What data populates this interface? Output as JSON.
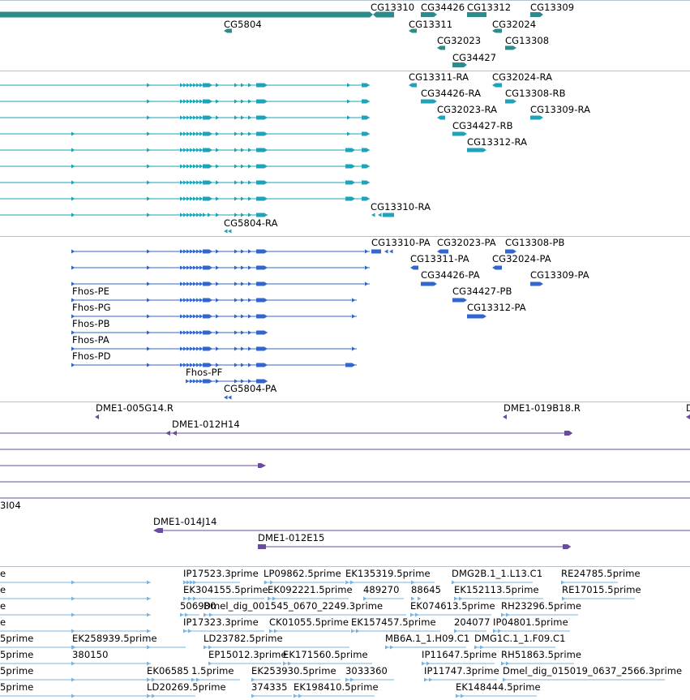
{
  "colors": {
    "gene": "#2e8b8b",
    "transcript": "#1ea3b8",
    "protein": "#3366cc",
    "clone": "#6a4ba0",
    "est": "#7ab3de"
  },
  "tracks": {
    "genes": {
      "labels": [
        "CG13310",
        "CG34426",
        "CG13312",
        "CG13309",
        "CG5804",
        "CG13311",
        "CG32024",
        "CG32023",
        "CG13308",
        "CG34427"
      ]
    },
    "transcripts": {
      "labels": [
        "CG13311-RA",
        "CG32024-RA",
        "CG34426-RA",
        "CG13308-RB",
        "CG32023-RA",
        "CG13309-RA",
        "CG34427-RB",
        "CG13312-RA",
        "CG13310-RA",
        "CG5804-RA"
      ]
    },
    "proteins": {
      "labels": [
        "CG13310-PA",
        "CG32023-PA",
        "CG13308-PB",
        "CG13311-PA",
        "CG32024-PA",
        "CG34426-PA",
        "CG13309-PA",
        "Fhos-PE",
        "CG34427-PB",
        "Fhos-PG",
        "CG13312-PA",
        "Fhos-PB",
        "Fhos-PA",
        "Fhos-PD",
        "Fhos-PF",
        "CG5804-PA"
      ]
    },
    "clones": {
      "labels": [
        "DME1-005G14.R",
        "DME1-019B18.R",
        "D",
        "DME1-012H14",
        "3I04",
        "DME1-014J14",
        "DME1-012E15"
      ]
    },
    "ests": {
      "labels": [
        "e",
        "IP17523.3prime",
        "LP09862.5prime",
        "EK135319.5prime",
        "DMG2B.1_1.L13.C1",
        "RE24785.5prime",
        "e",
        "EK304155.5prime",
        "EK092221.5prime",
        "489270",
        "88645",
        "EK152113.5prime",
        "RE17015.5prime",
        "e",
        "506980",
        "Dmel_dig_001545_0670_2249.3prime",
        "EK074613.5prime",
        "RH23296.5prime",
        "e",
        "IP17323.3prime",
        "CK01055.5prime",
        "EK157457.5prime",
        "204077",
        "IP04801.5prime",
        "5prime",
        "EK258939.5prime",
        "LD23782.5prime",
        "MB6A.1_1.H09.C1",
        "DMG1C.1_1.F09.C1",
        "5prime",
        "380150",
        "EP15012.3prime",
        "EK171560.5prime",
        "IP11647.5prime",
        "RH51863.5prime",
        "5prime",
        "EK06585",
        "1.5prime",
        "EK253930.5prime",
        "3033360",
        "IP11747.3prime",
        "Dmel_dig_015019_0637_2566.3prime",
        "5prime",
        "LD20269.5prime",
        "374335",
        "EK198410.5prime",
        "EK148444.5prime"
      ]
    }
  }
}
